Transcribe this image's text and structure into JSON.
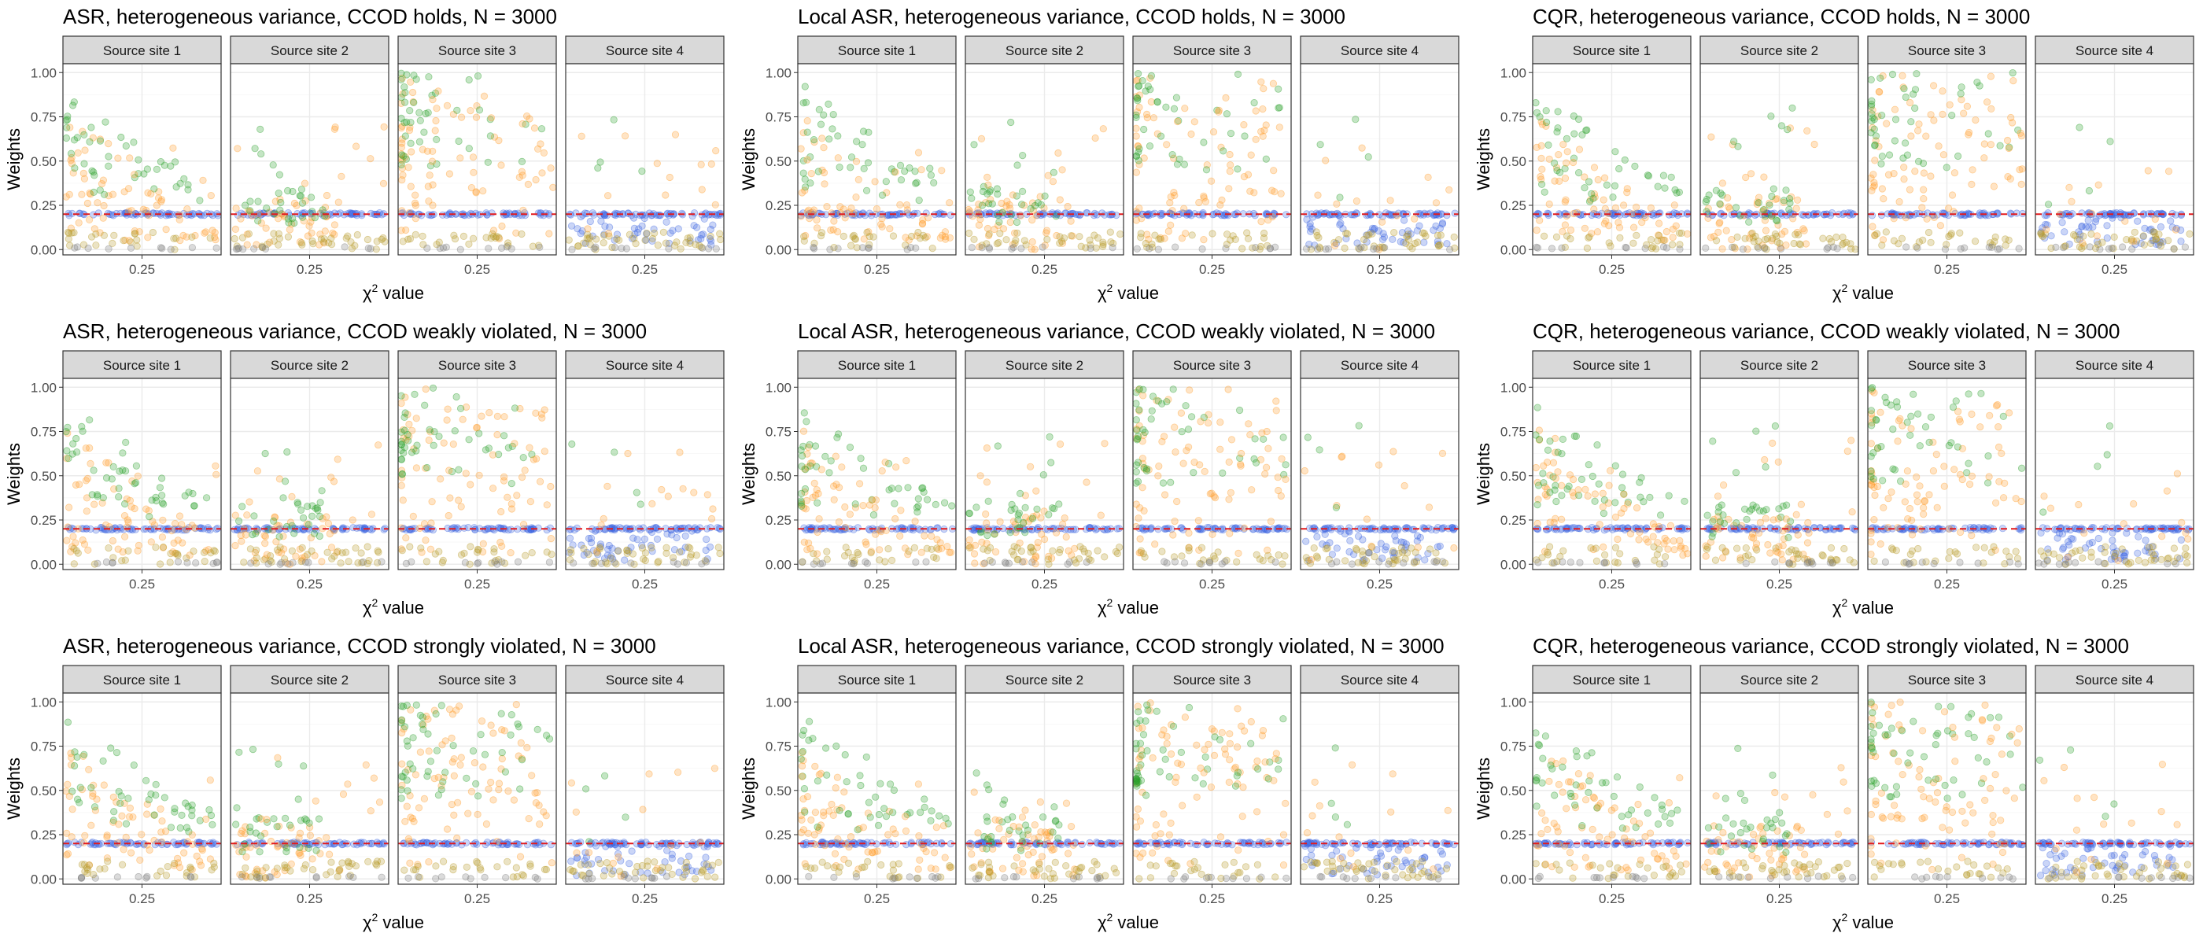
{
  "figure": {
    "x_label_symbol": "χ",
    "x_label_superscript": "2",
    "x_label_suffix": " value",
    "y_label": "Weights",
    "reference_line_color": "#e41a1c",
    "colors": {
      "green": "#2ca02c",
      "orange": "#ff9f2e",
      "olive": "#b79c2a",
      "blue": "#4169e1",
      "grey": "#7f7f7f",
      "strip_fill": "#d9d9d9",
      "panel_border": "#333333",
      "grid": "#ebebeb"
    }
  },
  "chart_data": [
    {
      "type": "scatter",
      "method": "ASR",
      "scenario": "holds",
      "title": "ASR, heterogeneous variance, CCOD holds, N = 3000",
      "facets": [
        "Source site 1",
        "Source site 2",
        "Source site 3",
        "Source site 4"
      ],
      "ylim": [
        -0.03,
        1.05
      ],
      "yticks": [
        "0.00",
        "0.25",
        "0.50",
        "0.75",
        "1.00"
      ],
      "xticks": [
        "0.25"
      ],
      "reference_y": 0.2,
      "xlabel": "χ2 value",
      "ylabel": "Weights"
    },
    {
      "type": "scatter",
      "method": "Local ASR",
      "scenario": "holds",
      "title": "Local ASR, heterogeneous variance, CCOD holds, N = 3000",
      "facets": [
        "Source site 1",
        "Source site 2",
        "Source site 3",
        "Source site 4"
      ],
      "ylim": [
        -0.03,
        1.05
      ],
      "yticks": [
        "0.00",
        "0.25",
        "0.50",
        "0.75",
        "1.00"
      ],
      "xticks": [
        "0.25"
      ],
      "reference_y": 0.2,
      "xlabel": "χ2 value",
      "ylabel": "Weights"
    },
    {
      "type": "scatter",
      "method": "CQR",
      "scenario": "holds",
      "title": "CQR, heterogeneous variance, CCOD holds, N = 3000",
      "facets": [
        "Source site 1",
        "Source site 2",
        "Source site 3",
        "Source site 4"
      ],
      "ylim": [
        -0.03,
        1.05
      ],
      "yticks": [
        "0.00",
        "0.25",
        "0.50",
        "0.75",
        "1.00"
      ],
      "xticks": [
        "0.25"
      ],
      "reference_y": 0.2,
      "xlabel": "χ2 value",
      "ylabel": "Weights"
    },
    {
      "type": "scatter",
      "method": "ASR",
      "scenario": "weak",
      "title": "ASR, heterogeneous variance, CCOD weakly violated, N = 3000",
      "facets": [
        "Source site 1",
        "Source site 2",
        "Source site 3",
        "Source site 4"
      ],
      "ylim": [
        -0.03,
        1.05
      ],
      "yticks": [
        "0.00",
        "0.25",
        "0.50",
        "0.75",
        "1.00"
      ],
      "xticks": [
        "0.25"
      ],
      "reference_y": 0.2,
      "xlabel": "χ2 value",
      "ylabel": "Weights"
    },
    {
      "type": "scatter",
      "method": "Local ASR",
      "scenario": "weak",
      "title": "Local ASR, heterogeneous variance, CCOD weakly violated, N = 3000",
      "facets": [
        "Source site 1",
        "Source site 2",
        "Source site 3",
        "Source site 4"
      ],
      "ylim": [
        -0.03,
        1.05
      ],
      "yticks": [
        "0.00",
        "0.25",
        "0.50",
        "0.75",
        "1.00"
      ],
      "xticks": [
        "0.25"
      ],
      "reference_y": 0.2,
      "xlabel": "χ2 value",
      "ylabel": "Weights"
    },
    {
      "type": "scatter",
      "method": "CQR",
      "scenario": "weak",
      "title": "CQR, heterogeneous variance, CCOD weakly violated, N = 3000",
      "facets": [
        "Source site 1",
        "Source site 2",
        "Source site 3",
        "Source site 4"
      ],
      "ylim": [
        -0.03,
        1.05
      ],
      "yticks": [
        "0.00",
        "0.25",
        "0.50",
        "0.75",
        "1.00"
      ],
      "xticks": [
        "0.25"
      ],
      "reference_y": 0.2,
      "xlabel": "χ2 value",
      "ylabel": "Weights"
    },
    {
      "type": "scatter",
      "method": "ASR",
      "scenario": "strong",
      "title": "ASR, heterogeneous variance, CCOD strongly violated, N = 3000",
      "facets": [
        "Source site 1",
        "Source site 2",
        "Source site 3",
        "Source site 4"
      ],
      "ylim": [
        -0.03,
        1.05
      ],
      "yticks": [
        "0.00",
        "0.25",
        "0.50",
        "0.75",
        "1.00"
      ],
      "xticks": [
        "0.25"
      ],
      "reference_y": 0.2,
      "xlabel": "χ2 value",
      "ylabel": "Weights"
    },
    {
      "type": "scatter",
      "method": "Local ASR",
      "scenario": "strong",
      "title": "Local ASR, heterogeneous variance, CCOD strongly violated, N = 3000",
      "facets": [
        "Source site 1",
        "Source site 2",
        "Source site 3",
        "Source site 4"
      ],
      "ylim": [
        -0.03,
        1.05
      ],
      "yticks": [
        "0.00",
        "0.25",
        "0.50",
        "0.75",
        "1.00"
      ],
      "xticks": [
        "0.25"
      ],
      "reference_y": 0.2,
      "xlabel": "χ2 value",
      "ylabel": "Weights"
    },
    {
      "type": "scatter",
      "method": "CQR",
      "scenario": "strong",
      "title": "CQR, heterogeneous variance, CCOD strongly violated, N = 3000",
      "facets": [
        "Source site 1",
        "Source site 2",
        "Source site 3",
        "Source site 4"
      ],
      "ylim": [
        -0.03,
        1.05
      ],
      "yticks": [
        "0.00",
        "0.25",
        "0.50",
        "0.75",
        "1.00"
      ],
      "xticks": [
        "0.25"
      ],
      "reference_y": 0.2,
      "xlabel": "χ2 value",
      "ylabel": "Weights"
    }
  ]
}
